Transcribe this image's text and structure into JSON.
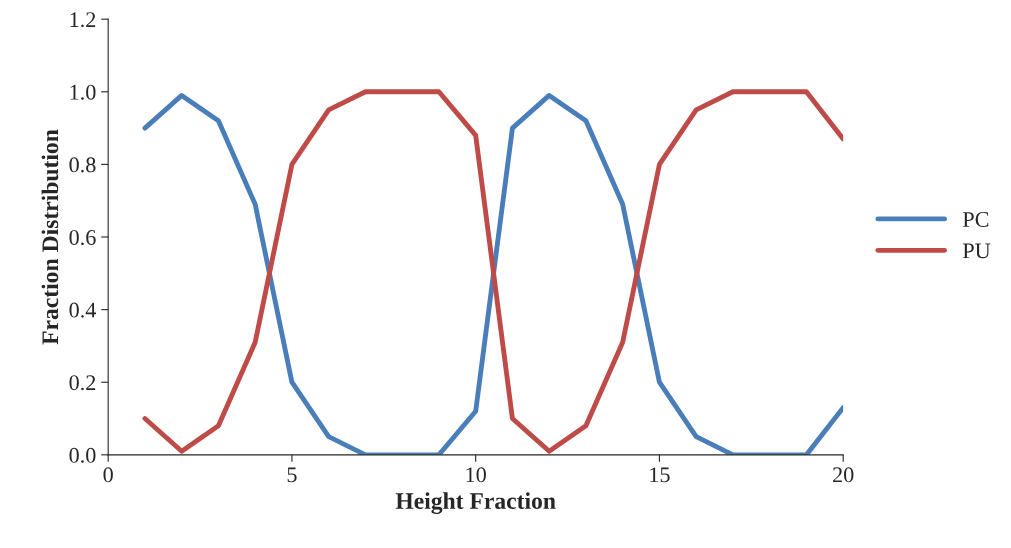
{
  "chart_data": {
    "type": "line",
    "xlabel": "Height Fraction",
    "ylabel": "Fraction Distribution",
    "x": [
      1,
      2,
      3,
      4,
      5,
      6,
      7,
      8,
      9,
      10,
      11,
      12,
      13,
      14,
      15,
      16,
      17,
      18,
      19,
      20
    ],
    "series": [
      {
        "name": "PC",
        "color": "#4a7ebb",
        "values": [
          0.9,
          0.99,
          0.92,
          0.69,
          0.2,
          0.05,
          0.0,
          0.0,
          0.0,
          0.12,
          0.9,
          0.99,
          0.92,
          0.69,
          0.2,
          0.05,
          0.0,
          0.0,
          0.0,
          0.13
        ]
      },
      {
        "name": "PU",
        "color": "#be4b48",
        "values": [
          0.1,
          0.01,
          0.08,
          0.31,
          0.8,
          0.95,
          1.0,
          1.0,
          1.0,
          0.88,
          0.1,
          0.01,
          0.08,
          0.31,
          0.8,
          0.95,
          1.0,
          1.0,
          1.0,
          0.87
        ]
      }
    ],
    "xlim": [
      0,
      20
    ],
    "xticks": [
      0,
      5,
      10,
      15,
      20
    ],
    "ylim": [
      0,
      1.2
    ],
    "yticks": [
      {
        "value": 0,
        "label": "0.0"
      },
      {
        "value": 0.2,
        "label": "0.2"
      },
      {
        "value": 0.4,
        "label": "0.4"
      },
      {
        "value": 0.6,
        "label": "0.6"
      },
      {
        "value": 0.8,
        "label": "0.8"
      },
      {
        "value": 1.0,
        "label": "1.0"
      },
      {
        "value": 1.2,
        "label": "1.2"
      }
    ],
    "legend": "right",
    "grid": false,
    "marker": "none",
    "line_style": "solid"
  }
}
